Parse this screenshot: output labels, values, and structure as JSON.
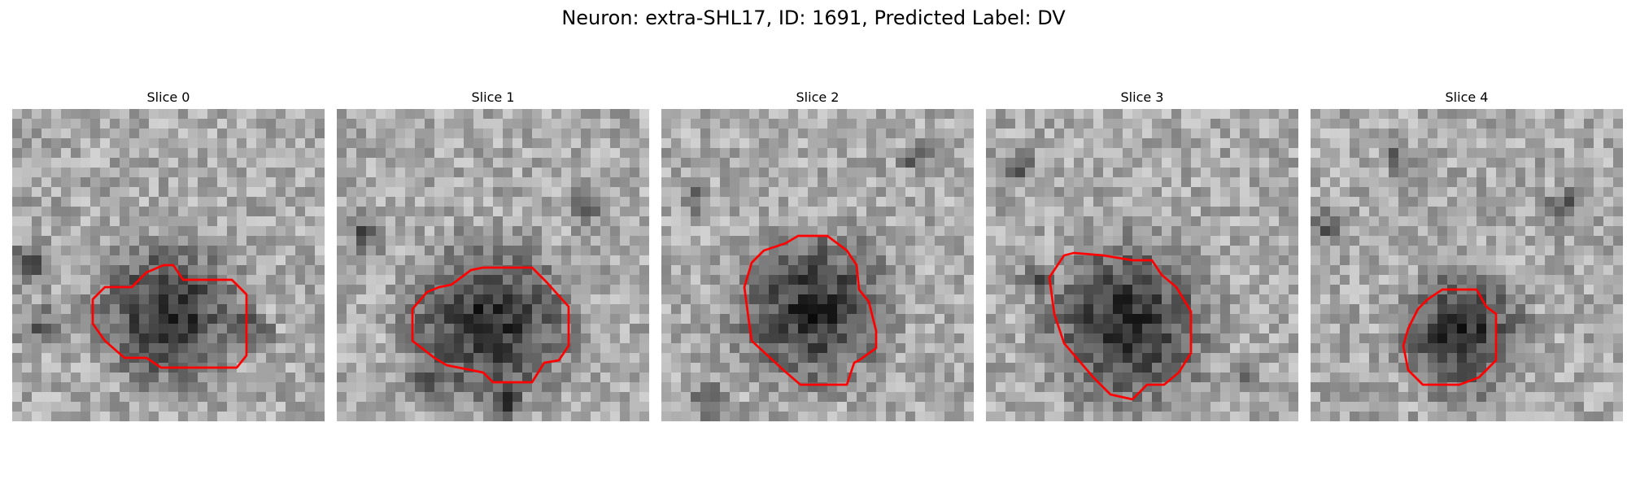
{
  "figure": {
    "title": "Neuron: extra-SHL17, ID: 1691, Predicted Label: DV"
  },
  "panels": [
    {
      "title": "Slice 0",
      "contour": [
        [
          70,
          70
        ],
        [
          90,
          70
        ],
        [
          96,
          76
        ],
        [
          96,
          101
        ],
        [
          92,
          106
        ],
        [
          61,
          106
        ],
        [
          55,
          102
        ],
        [
          46,
          102
        ],
        [
          38,
          95
        ],
        [
          33,
          88
        ],
        [
          33,
          78
        ],
        [
          38,
          73
        ],
        [
          49,
          73
        ],
        [
          55,
          67
        ],
        [
          62,
          64
        ],
        [
          66,
          64
        ]
      ]
    },
    {
      "title": "Slice 1",
      "contour": [
        [
          60,
          65
        ],
        [
          80,
          65
        ],
        [
          86,
          71
        ],
        [
          95,
          81
        ],
        [
          95,
          97
        ],
        [
          91,
          103
        ],
        [
          85,
          104
        ],
        [
          80,
          112
        ],
        [
          64,
          112
        ],
        [
          60,
          108
        ],
        [
          45,
          105
        ],
        [
          40,
          102
        ],
        [
          31,
          95
        ],
        [
          31,
          82
        ],
        [
          37,
          75
        ],
        [
          42,
          73
        ],
        [
          47,
          72
        ],
        [
          55,
          66
        ]
      ]
    },
    {
      "title": "Slice 2",
      "contour": [
        [
          56,
          52
        ],
        [
          68,
          52
        ],
        [
          76,
          58
        ],
        [
          80,
          64
        ],
        [
          81,
          74
        ],
        [
          85,
          79
        ],
        [
          88,
          91
        ],
        [
          88,
          98
        ],
        [
          81,
          103
        ],
        [
          79,
          104
        ],
        [
          76,
          113
        ],
        [
          57,
          113
        ],
        [
          50,
          107
        ],
        [
          37,
          95
        ],
        [
          36,
          88
        ],
        [
          34,
          73
        ],
        [
          37,
          63
        ],
        [
          42,
          58
        ],
        [
          51,
          55
        ]
      ]
    },
    {
      "title": "Slice 3",
      "contour": [
        [
          48,
          60
        ],
        [
          60,
          62
        ],
        [
          68,
          62
        ],
        [
          72,
          68
        ],
        [
          78,
          73
        ],
        [
          84,
          83
        ],
        [
          84,
          100
        ],
        [
          79,
          108
        ],
        [
          73,
          113
        ],
        [
          66,
          113
        ],
        [
          60,
          119
        ],
        [
          51,
          117
        ],
        [
          44,
          110
        ],
        [
          38,
          103
        ],
        [
          32,
          96
        ],
        [
          28,
          84
        ],
        [
          26,
          69
        ],
        [
          32,
          60
        ],
        [
          36,
          59
        ]
      ]
    },
    {
      "title": "Slice 4",
      "contour": [
        [
          60,
          74
        ],
        [
          68,
          74
        ],
        [
          72,
          81
        ],
        [
          76,
          84
        ],
        [
          76,
          103
        ],
        [
          72,
          107
        ],
        [
          69,
          110
        ],
        [
          61,
          113
        ],
        [
          46,
          113
        ],
        [
          40,
          107
        ],
        [
          38,
          97
        ],
        [
          40,
          90
        ],
        [
          44,
          82
        ],
        [
          48,
          78
        ],
        [
          54,
          74
        ]
      ]
    }
  ],
  "style": {
    "contour_color": "#ff0000"
  }
}
